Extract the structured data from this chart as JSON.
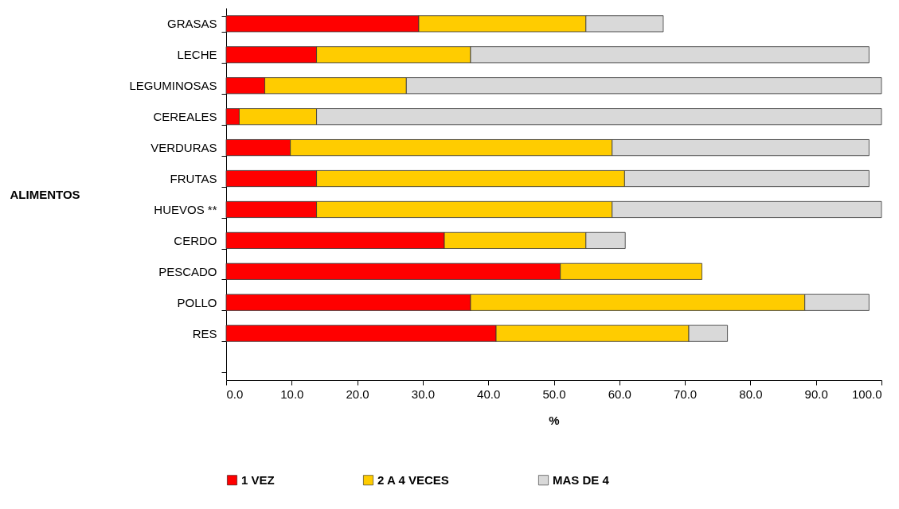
{
  "chart_data": {
    "type": "bar",
    "orientation": "horizontal",
    "stacked": true,
    "categories": [
      "GRASAS",
      "LECHE",
      "LEGUMINOSAS",
      "CEREALES",
      "VERDURAS",
      "FRUTAS",
      "HUEVOS **",
      "CERDO",
      "PESCADO",
      "POLLO",
      "RES",
      null
    ],
    "series": [
      {
        "name": "1 VEZ",
        "color": "#ff0000",
        "values": [
          29.4,
          13.8,
          5.9,
          2.0,
          9.8,
          13.8,
          13.8,
          33.3,
          51.0,
          37.3,
          41.2,
          null
        ]
      },
      {
        "name": "2 A 4 VECES",
        "color": "#ffcc00",
        "values": [
          25.5,
          23.5,
          21.6,
          11.8,
          49.1,
          47.0,
          45.1,
          21.6,
          21.6,
          51.0,
          29.4,
          null
        ]
      },
      {
        "name": "MAS DE 4",
        "color": "#d9d9d9",
        "values": [
          11.8,
          60.8,
          72.5,
          86.2,
          39.2,
          37.3,
          41.1,
          6.0,
          null,
          9.8,
          5.9,
          null
        ]
      }
    ],
    "xlim": [
      0,
      100
    ],
    "xticks": [
      {
        "value": 0,
        "label": "0.0"
      },
      {
        "value": 10,
        "label": "10.0"
      },
      {
        "value": 20,
        "label": "20.0"
      },
      {
        "value": 30,
        "label": "30.0"
      },
      {
        "value": 40,
        "label": "40.0"
      },
      {
        "value": 50,
        "label": "50.0"
      },
      {
        "value": 60,
        "label": "60.0"
      },
      {
        "value": 70,
        "label": "70.0"
      },
      {
        "value": 80,
        "label": "80.0"
      },
      {
        "value": 90,
        "label": "90.0"
      },
      {
        "value": 100,
        "label": "100.0"
      }
    ],
    "xlabel": "%",
    "ylabel": "ALIMENTOS",
    "legend": "bottom",
    "grid": false
  }
}
